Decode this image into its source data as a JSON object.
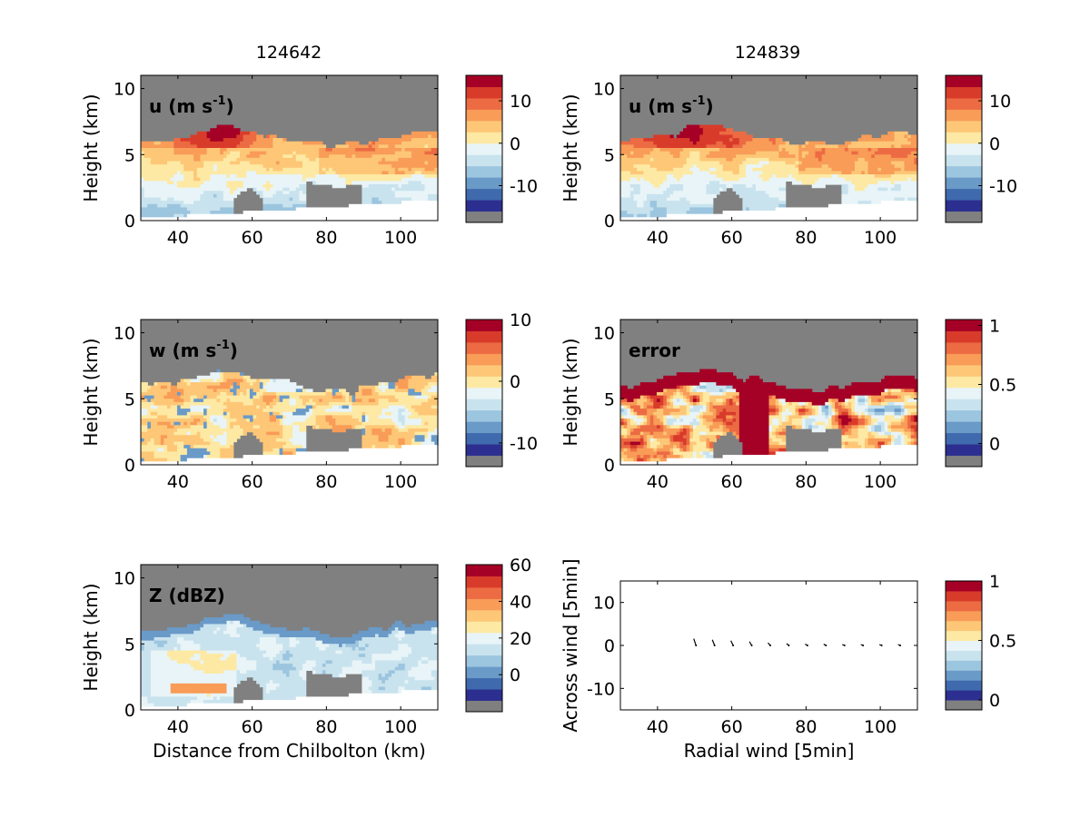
{
  "colormaps": {
    "rdylbu": [
      "#2c2f8f",
      "#3f6aad",
      "#6a9ac8",
      "#9cc5df",
      "#c8e3ee",
      "#e8f4f7",
      "#fde9a3",
      "#fdc777",
      "#f89c57",
      "#ec6b43",
      "#d93b2b",
      "#a50026"
    ],
    "missing": "#808080"
  },
  "panels": [
    {
      "id": "u-124642",
      "column_title": "124642",
      "label": "u (m s",
      "label_sup": "-1",
      "label_tail": ")",
      "ylabel": "Height (km)",
      "xlabel": "",
      "xlim": [
        30,
        110
      ],
      "ylim": [
        0,
        11
      ],
      "xticks": [
        "40",
        "60",
        "80",
        "100"
      ],
      "xtick_values": [
        40,
        60,
        80,
        100
      ],
      "yticks": [
        "0",
        "5",
        "10"
      ],
      "ytick_values": [
        0,
        5,
        10
      ],
      "colorbar_ticks": [
        "10",
        "0",
        "-10"
      ],
      "colorbar_tick_values": [
        10,
        0,
        -10
      ],
      "colorbar_range": [
        -16,
        16
      ],
      "field": "u"
    },
    {
      "id": "u-124839",
      "column_title": "124839",
      "label": "u (m s",
      "label_sup": "-1",
      "label_tail": ")",
      "ylabel": "Height (km)",
      "xlabel": "",
      "xlim": [
        30,
        110
      ],
      "ylim": [
        0,
        11
      ],
      "xticks": [
        "40",
        "60",
        "80",
        "100"
      ],
      "xtick_values": [
        40,
        60,
        80,
        100
      ],
      "yticks": [
        "0",
        "5",
        "10"
      ],
      "ytick_values": [
        0,
        5,
        10
      ],
      "colorbar_ticks": [
        "10",
        "0",
        "-10"
      ],
      "colorbar_tick_values": [
        10,
        0,
        -10
      ],
      "colorbar_range": [
        -16,
        16
      ],
      "field": "u"
    },
    {
      "id": "w-124642",
      "column_title": "",
      "label": "w (m s",
      "label_sup": "-1",
      "label_tail": ")",
      "ylabel": "Height (km)",
      "xlabel": "",
      "xlim": [
        30,
        110
      ],
      "ylim": [
        0,
        11
      ],
      "xticks": [
        "40",
        "60",
        "80",
        "100"
      ],
      "xtick_values": [
        40,
        60,
        80,
        100
      ],
      "yticks": [
        "0",
        "5",
        "10"
      ],
      "ytick_values": [
        0,
        5,
        10
      ],
      "colorbar_ticks": [
        "10",
        "0",
        "-10"
      ],
      "colorbar_tick_values": [
        10,
        0,
        -10
      ],
      "colorbar_range": [
        -12,
        10
      ],
      "field": "w"
    },
    {
      "id": "error-124839",
      "column_title": "",
      "label": "error",
      "label_sup": "",
      "label_tail": "",
      "ylabel": "Height (km)",
      "xlabel": "",
      "xlim": [
        30,
        110
      ],
      "ylim": [
        0,
        11
      ],
      "xticks": [
        "40",
        "60",
        "80",
        "100"
      ],
      "xtick_values": [
        40,
        60,
        80,
        100
      ],
      "yticks": [
        "0",
        "5",
        "10"
      ],
      "ytick_values": [
        0,
        5,
        10
      ],
      "colorbar_ticks": [
        "1",
        "0.5",
        "0"
      ],
      "colorbar_tick_values": [
        1,
        0.5,
        0
      ],
      "colorbar_range": [
        -0.1,
        1.05
      ],
      "field": "error"
    },
    {
      "id": "z-124642",
      "column_title": "",
      "label": "Z (dBZ)",
      "label_sup": "",
      "label_tail": "",
      "ylabel": "Height (km)",
      "xlabel": "Distance from Chilbolton (km)",
      "xlim": [
        30,
        110
      ],
      "ylim": [
        0,
        11
      ],
      "xticks": [
        "40",
        "60",
        "80",
        "100"
      ],
      "xtick_values": [
        40,
        60,
        80,
        100
      ],
      "yticks": [
        "0",
        "5",
        "10"
      ],
      "ytick_values": [
        0,
        5,
        10
      ],
      "colorbar_ticks": [
        "60",
        "40",
        "20",
        "0"
      ],
      "colorbar_tick_values": [
        60,
        40,
        20,
        0
      ],
      "colorbar_range": [
        -14,
        60
      ],
      "field": "z"
    },
    {
      "id": "wind-vectors",
      "column_title": "",
      "label": "",
      "label_sup": "",
      "label_tail": "",
      "ylabel": "Across wind [5min]",
      "xlabel": "Radial wind [5min]",
      "xlim": [
        30,
        110
      ],
      "ylim": [
        -15,
        15
      ],
      "xticks": [
        "40",
        "60",
        "80",
        "100"
      ],
      "xtick_values": [
        40,
        60,
        80,
        100
      ],
      "yticks": [
        "10",
        "0",
        "-10"
      ],
      "ytick_values": [
        10,
        0,
        -10
      ],
      "colorbar_ticks": [
        "1",
        "0.5",
        "0"
      ],
      "colorbar_tick_values": [
        1,
        0.5,
        0
      ],
      "colorbar_range": [
        0,
        1
      ],
      "field": "vectors"
    }
  ],
  "chart_data": {
    "type": "heatmap",
    "titles": [
      "124642",
      "124839"
    ],
    "series": [
      {
        "name": "u (m s-1)",
        "time": "124642",
        "xlim": [
          30,
          110
        ],
        "ylim": [
          0,
          11
        ],
        "clim": [
          -16,
          16
        ]
      },
      {
        "name": "u (m s-1)",
        "time": "124839",
        "xlim": [
          30,
          110
        ],
        "ylim": [
          0,
          11
        ],
        "clim": [
          -16,
          16
        ]
      },
      {
        "name": "w (m s-1)",
        "time": "124642",
        "xlim": [
          30,
          110
        ],
        "ylim": [
          0,
          11
        ],
        "clim": [
          -12,
          10
        ]
      },
      {
        "name": "error",
        "time": "124839",
        "xlim": [
          30,
          110
        ],
        "ylim": [
          0,
          11
        ],
        "clim": [
          0,
          1
        ]
      },
      {
        "name": "Z (dBZ)",
        "time": "124642",
        "xlim": [
          30,
          110
        ],
        "ylim": [
          0,
          11
        ],
        "clim": [
          -14,
          60
        ]
      }
    ],
    "vectors": {
      "type": "scatter",
      "xlabel": "Radial wind [5min]",
      "ylabel": "Across wind [5min]",
      "xlim": [
        30,
        110
      ],
      "ylim": [
        -15,
        15
      ],
      "x": [
        50,
        55,
        60,
        65,
        70,
        75,
        80,
        85,
        90,
        95,
        100,
        105
      ],
      "y": [
        0,
        0,
        0,
        0,
        0,
        0,
        0,
        0,
        0,
        0,
        0,
        0
      ],
      "dy": [
        0.8,
        0.7,
        0.6,
        0.5,
        0.3,
        0.2,
        0.1,
        0.1,
        0,
        0,
        0,
        0
      ]
    }
  }
}
